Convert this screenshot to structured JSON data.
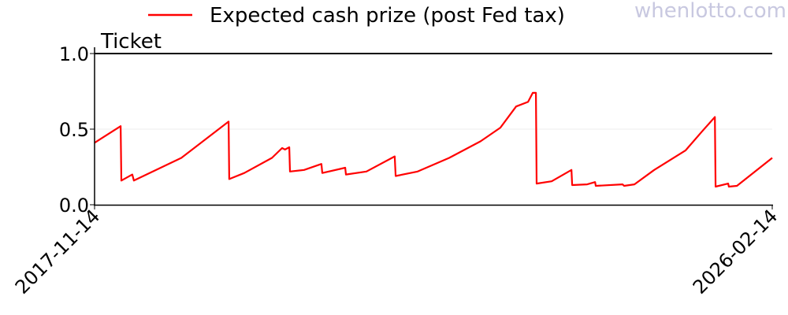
{
  "watermark": "whenlotto.com",
  "chart_data": {
    "type": "line",
    "title": "",
    "xlabel": "",
    "ylabel": "",
    "legend": {
      "placement": "top-center",
      "entries": [
        "Expected cash prize (post Fed tax)"
      ]
    },
    "xlim": [
      "2017-11-14",
      "2026-02-14"
    ],
    "ylim": [
      0,
      1.05
    ],
    "x_tick_labels": [
      "2017-11-14",
      "2026-02-14"
    ],
    "y_ticks": [
      0.0,
      0.5,
      1.0
    ],
    "y_tick_labels": [
      "0.0",
      "0.5",
      "1.0"
    ],
    "grid": "faint horizontal gridline at 0.5",
    "reference_line": {
      "label": "Ticket",
      "value": 1.0,
      "color": "#000000"
    },
    "series": [
      {
        "name": "Expected cash prize (post Fed tax)",
        "color": "#ff0000",
        "points": [
          [
            "2017-11-14",
            0.41
          ],
          [
            "2018-03-10",
            0.52
          ],
          [
            "2018-03-13",
            0.16
          ],
          [
            "2018-05-01",
            0.2
          ],
          [
            "2018-05-08",
            0.16
          ],
          [
            "2018-12-05",
            0.31
          ],
          [
            "2019-07-03",
            0.55
          ],
          [
            "2019-07-06",
            0.17
          ],
          [
            "2019-09-11",
            0.21
          ],
          [
            "2020-01-12",
            0.31
          ],
          [
            "2020-02-26",
            0.375
          ],
          [
            "2020-03-10",
            0.365
          ],
          [
            "2020-03-29",
            0.38
          ],
          [
            "2020-04-01",
            0.22
          ],
          [
            "2020-06-03",
            0.23
          ],
          [
            "2020-08-19",
            0.27
          ],
          [
            "2020-08-23",
            0.21
          ],
          [
            "2020-12-03",
            0.245
          ],
          [
            "2020-12-06",
            0.2
          ],
          [
            "2021-03-07",
            0.22
          ],
          [
            "2021-07-11",
            0.32
          ],
          [
            "2021-07-15",
            0.19
          ],
          [
            "2021-10-21",
            0.22
          ],
          [
            "2022-03-10",
            0.31
          ],
          [
            "2022-07-28",
            0.42
          ],
          [
            "2022-10-24",
            0.51
          ],
          [
            "2023-01-02",
            0.65
          ],
          [
            "2023-02-24",
            0.68
          ],
          [
            "2023-03-17",
            0.74
          ],
          [
            "2023-03-31",
            0.74
          ],
          [
            "2023-04-03",
            0.14
          ],
          [
            "2023-06-09",
            0.155
          ],
          [
            "2023-09-05",
            0.23
          ],
          [
            "2023-09-08",
            0.13
          ],
          [
            "2023-11-14",
            0.135
          ],
          [
            "2023-12-19",
            0.15
          ],
          [
            "2023-12-22",
            0.125
          ],
          [
            "2024-04-19",
            0.135
          ],
          [
            "2024-04-26",
            0.125
          ],
          [
            "2024-06-11",
            0.135
          ],
          [
            "2024-09-07",
            0.23
          ],
          [
            "2025-01-25",
            0.36
          ],
          [
            "2025-04-05",
            0.48
          ],
          [
            "2025-06-04",
            0.58
          ],
          [
            "2025-06-07",
            0.12
          ],
          [
            "2025-08-02",
            0.14
          ],
          [
            "2025-08-05",
            0.12
          ],
          [
            "2025-09-10",
            0.125
          ],
          [
            "2026-02-14",
            0.31
          ]
        ]
      }
    ]
  }
}
